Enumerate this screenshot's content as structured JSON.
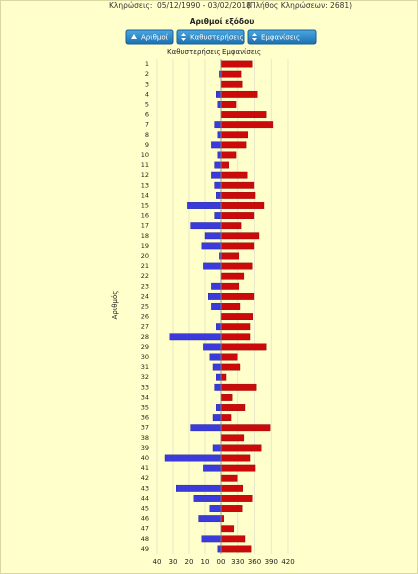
{
  "header_label": "Κληρώσεις:",
  "date_range": "05/12/1990 - 03/02/2018",
  "count_note": "(Πλήθος Κληρώσεων: 2681)",
  "chart_data": {
    "type": "diverging-bar",
    "title": "Αριθμοί εξόδου",
    "buttons": [
      "Αριθμοί",
      "Καθυστερήσεις",
      "Εμφανίσεις"
    ],
    "y_label": "Αριθμός",
    "categories": [
      "1",
      "2",
      "3",
      "4",
      "5",
      "6",
      "7",
      "8",
      "9",
      "10",
      "11",
      "12",
      "13",
      "14",
      "15",
      "16",
      "17",
      "18",
      "19",
      "20",
      "21",
      "22",
      "23",
      "24",
      "25",
      "26",
      "27",
      "28",
      "29",
      "30",
      "31",
      "32",
      "33",
      "34",
      "35",
      "36",
      "37",
      "38",
      "39",
      "40",
      "41",
      "42",
      "43",
      "44",
      "45",
      "46",
      "47",
      "48",
      "49"
    ],
    "series": [
      {
        "name": "Καθυστερήσεις",
        "color": "#3b3bdc",
        "axis": "x",
        "values": [
          0,
          1,
          0,
          3,
          2,
          0,
          4,
          2,
          6,
          2,
          4,
          6,
          4,
          3,
          21,
          4,
          19,
          10,
          12,
          1,
          11,
          0,
          6,
          8,
          6,
          0,
          3,
          32,
          11,
          7,
          5,
          3,
          4,
          0,
          3,
          5,
          19,
          0,
          5,
          35,
          11,
          0,
          28,
          17,
          7,
          14,
          0,
          12,
          2
        ]
      },
      {
        "name": "Εμφανίσεις",
        "color": "#cc0a0a",
        "axis": "x2",
        "values": [
          356,
          336,
          338,
          365,
          327,
          381,
          393,
          348,
          345,
          327,
          314,
          347,
          359,
          361,
          377,
          359,
          336,
          368,
          359,
          332,
          356,
          341,
          332,
          359,
          334,
          357,
          352,
          352,
          381,
          329,
          334,
          309,
          363,
          320,
          343,
          318,
          388,
          341,
          372,
          352,
          361,
          329,
          339,
          356,
          338,
          305,
          323,
          343,
          354
        ]
      }
    ],
    "xlim": [
      0,
      40
    ],
    "xticks": [
      40,
      30,
      20,
      10,
      {
        "value": 0,
        "label": "00"
      }
    ],
    "x2lim": [
      300,
      420
    ],
    "x2ticks": [
      330,
      360,
      390,
      420
    ],
    "grid": true
  }
}
